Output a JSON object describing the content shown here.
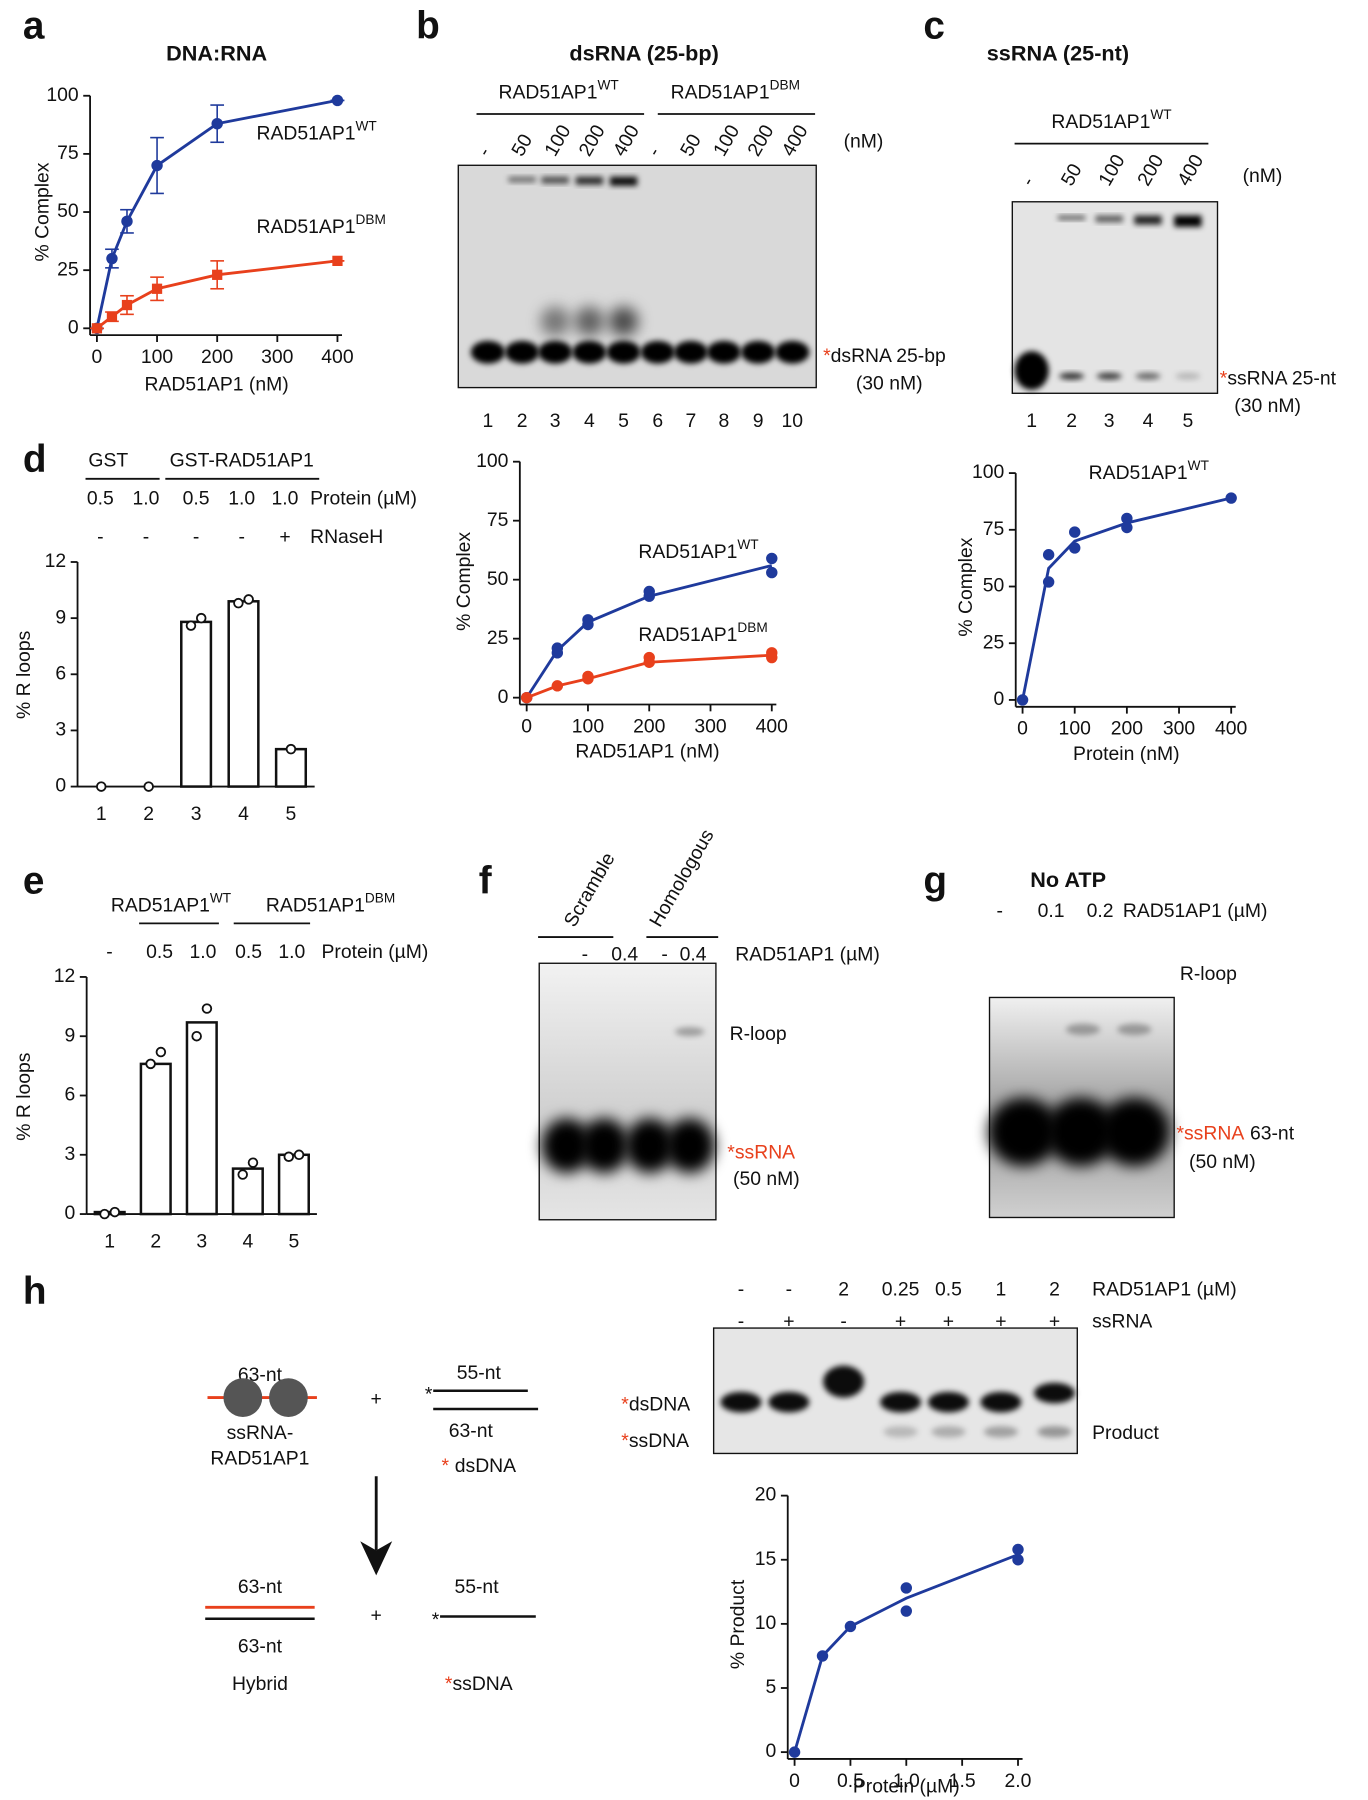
{
  "panel_labels": [
    "a",
    "b",
    "c",
    "d",
    "e",
    "f",
    "g",
    "h"
  ],
  "chart_data": [
    {
      "type": "line",
      "title": "DNA:RNA",
      "x_label": "RAD51AP1 (nM)",
      "y_label": "% Complex",
      "x": [
        0,
        25,
        50,
        100,
        200,
        400
      ],
      "xlim": [
        0,
        400
      ],
      "xticks": [
        0,
        100,
        200,
        300,
        400
      ],
      "ylim": [
        0,
        100
      ],
      "yticks": [
        0,
        25,
        50,
        75,
        100
      ],
      "series": [
        {
          "name": "RAD51AP1",
          "name_sup": "WT",
          "color": "#1f3a9c",
          "marker": "circle",
          "values": [
            0,
            30,
            46,
            70,
            88,
            98
          ],
          "errors": [
            0,
            4,
            5,
            12,
            8,
            0
          ]
        },
        {
          "name": "RAD51AP1",
          "name_sup": "DBM",
          "color": "#e8401c",
          "marker": "square",
          "values": [
            0,
            5,
            10,
            17,
            23,
            29
          ],
          "errors": [
            0,
            2,
            4,
            5,
            6,
            0
          ]
        }
      ]
    },
    {
      "type": "scatter",
      "x_label": "RAD51AP1 (nM)",
      "y_label": "% Complex",
      "xlim": [
        0,
        400
      ],
      "xticks": [
        0,
        100,
        200,
        300,
        400
      ],
      "ylim": [
        0,
        100
      ],
      "yticks": [
        0,
        25,
        50,
        75,
        100
      ],
      "series": [
        {
          "name": "RAD51AP1",
          "name_sup": "WT",
          "color": "#1f3a9c",
          "x": [
            0,
            50,
            100,
            200,
            400
          ],
          "values": [
            0,
            20,
            32,
            43,
            56
          ],
          "points_x": [
            0,
            50,
            50,
            100,
            100,
            200,
            200,
            400,
            400
          ],
          "points_y": [
            0,
            19,
            21,
            31,
            33,
            43,
            45,
            53,
            59
          ]
        },
        {
          "name": "RAD51AP1",
          "name_sup": "DBM",
          "color": "#e8401c",
          "x": [
            0,
            50,
            100,
            200,
            400
          ],
          "values": [
            0,
            5,
            8,
            15,
            18
          ],
          "points_x": [
            0,
            50,
            100,
            100,
            200,
            200,
            400,
            400
          ],
          "points_y": [
            0,
            5,
            8,
            9,
            15,
            17,
            17,
            19
          ]
        }
      ]
    },
    {
      "type": "scatter",
      "x_label": "Protein (nM)",
      "y_label": "% Complex",
      "xlim": [
        0,
        400
      ],
      "xticks": [
        0,
        100,
        200,
        300,
        400
      ],
      "ylim": [
        0,
        100
      ],
      "yticks": [
        0,
        25,
        50,
        75,
        100
      ],
      "series": [
        {
          "name": "RAD51AP1",
          "name_sup": "WT",
          "color": "#1f3a9c",
          "x": [
            0,
            50,
            100,
            200,
            400
          ],
          "values": [
            0,
            58,
            70,
            78,
            89
          ],
          "points_x": [
            0,
            50,
            50,
            100,
            100,
            200,
            200,
            400
          ],
          "points_y": [
            0,
            52,
            64,
            67,
            74,
            76,
            80,
            89
          ]
        }
      ]
    },
    {
      "type": "bar",
      "y_label": "% R loops",
      "categories": [
        "1",
        "2",
        "3",
        "4",
        "5"
      ],
      "values": [
        0,
        0,
        8.8,
        9.9,
        2.0
      ],
      "replicates": [
        [
          0
        ],
        [
          0
        ],
        [
          8.6,
          9.0
        ],
        [
          9.8,
          10.0
        ],
        [
          2.0
        ]
      ],
      "ylim": [
        0,
        12
      ],
      "yticks": [
        0,
        3,
        6,
        9,
        12
      ],
      "header": {
        "groups": [
          {
            "name": "GST"
          },
          {
            "name": "GST-RAD51AP1"
          }
        ],
        "rows": [
          [
            "0.5",
            "1.0",
            "0.5",
            "1.0",
            "1.0"
          ],
          [
            "-",
            "-",
            "-",
            "-",
            "+"
          ]
        ],
        "row_labels": [
          "Protein (µM)",
          "RNaseH"
        ]
      }
    },
    {
      "type": "bar",
      "y_label": "% R loops",
      "categories": [
        "1",
        "2",
        "3",
        "4",
        "5"
      ],
      "values": [
        0.1,
        7.6,
        9.7,
        2.3,
        3.0
      ],
      "replicates": [
        [
          0,
          0.1
        ],
        [
          7.6,
          8.2
        ],
        [
          9.0,
          10.4
        ],
        [
          2.0,
          2.6
        ],
        [
          2.9,
          3.0
        ]
      ],
      "ylim": [
        0,
        12
      ],
      "yticks": [
        0,
        3,
        6,
        9,
        12
      ],
      "header": {
        "groups": [
          {
            "name": "RAD51AP1",
            "sup": "WT"
          },
          {
            "name": "RAD51AP1",
            "sup": "DBM"
          }
        ],
        "rows": [
          [
            "-",
            "0.5",
            "1.0",
            "0.5",
            "1.0"
          ]
        ],
        "row_labels": [
          "Protein (µM)"
        ]
      }
    },
    {
      "type": "scatter",
      "x_label": "Protein (µM)",
      "y_label": "% Product",
      "xlim": [
        0,
        2
      ],
      "xticks": [
        0,
        0.5,
        {
          "value": 1,
          "label": "1.0"
        },
        1.5,
        {
          "value": 2,
          "label": "2.0"
        }
      ],
      "ylim": [
        0,
        20
      ],
      "yticks": [
        0,
        5,
        10,
        15,
        20
      ],
      "series": [
        {
          "color": "#1f3a9c",
          "x": [
            0,
            0.25,
            0.5,
            1,
            2
          ],
          "values": [
            0,
            7.5,
            9.8,
            12,
            15.4
          ],
          "points_x": [
            0,
            0.25,
            0.5,
            1,
            1,
            2,
            2
          ],
          "points_y": [
            0,
            7.5,
            9.8,
            11,
            12.8,
            15,
            15.8
          ]
        }
      ]
    }
  ],
  "gels": {
    "b": {
      "title": "dsRNA (25-bp)",
      "groups": [
        {
          "name": "RAD51AP1",
          "sup": "WT"
        },
        {
          "name": "RAD51AP1",
          "sup": "DBM"
        }
      ],
      "concentrations": [
        "-",
        "50",
        "100",
        "200",
        "400",
        "-",
        "50",
        "100",
        "200",
        "400"
      ],
      "unit": "(nM)",
      "lanes": [
        "1",
        "2",
        "3",
        "4",
        "5",
        "6",
        "7",
        "8",
        "9",
        "10"
      ],
      "substrate": {
        "star": "*",
        "text": "dsRNA 25-bp"
      },
      "amount": "(30 nM)"
    },
    "c": {
      "title": "ssRNA (25-nt)",
      "groups": [
        {
          "name": "RAD51AP1",
          "sup": "WT"
        }
      ],
      "concentrations": [
        "-",
        "50",
        "100",
        "200",
        "400"
      ],
      "unit": "(nM)",
      "lanes": [
        "1",
        "2",
        "3",
        "4",
        "5"
      ],
      "substrate": {
        "star": "*",
        "text": "ssRNA 25-nt"
      },
      "amount": "(30 nM)"
    },
    "f": {
      "groups": [
        "Scramble",
        "Homologous"
      ],
      "concentrations": [
        "-",
        "0.4",
        "-",
        "0.4"
      ],
      "reagent": "RAD51AP1 (µM)",
      "product": "R-loop",
      "substrate": {
        "star": "*",
        "red_text": "ssRNA"
      },
      "amount": "(50 nM)"
    },
    "g": {
      "title": "No ATP",
      "concentrations": [
        "-",
        "0.1",
        "0.2"
      ],
      "reagent": "RAD51AP1 (µM)",
      "product": "R-loop",
      "substrate": {
        "star": "*",
        "red_text": "ssRNA",
        "text": "63-nt"
      },
      "amount": "(50 nM)"
    },
    "h": {
      "rows": [
        [
          "-",
          "-",
          "2",
          "0.25",
          "0.5",
          "1",
          "2"
        ],
        [
          "-",
          "+",
          "-",
          "+",
          "+",
          "+",
          "+"
        ]
      ],
      "row_labels": [
        "RAD51AP1 (µM)",
        "ssRNA"
      ],
      "bands": [
        {
          "star": "*",
          "text": "dsDNA"
        },
        {
          "star": "*",
          "text": "ssDNA"
        }
      ],
      "product": "Product"
    }
  },
  "diagram": {
    "top": {
      "rna_length": "63-nt",
      "complex": [
        "ssRNA-",
        "RAD51AP1"
      ],
      "plus": "+",
      "top_strand": "55-nt",
      "bottom_strand": "63-nt",
      "star": "*",
      "label": "dsDNA"
    },
    "bottom": {
      "rna_length": "63-nt",
      "dna_length": "63-nt",
      "label_left": "Hybrid",
      "plus": "+",
      "strand": "55-nt",
      "star": "*",
      "label": "ssDNA"
    }
  }
}
